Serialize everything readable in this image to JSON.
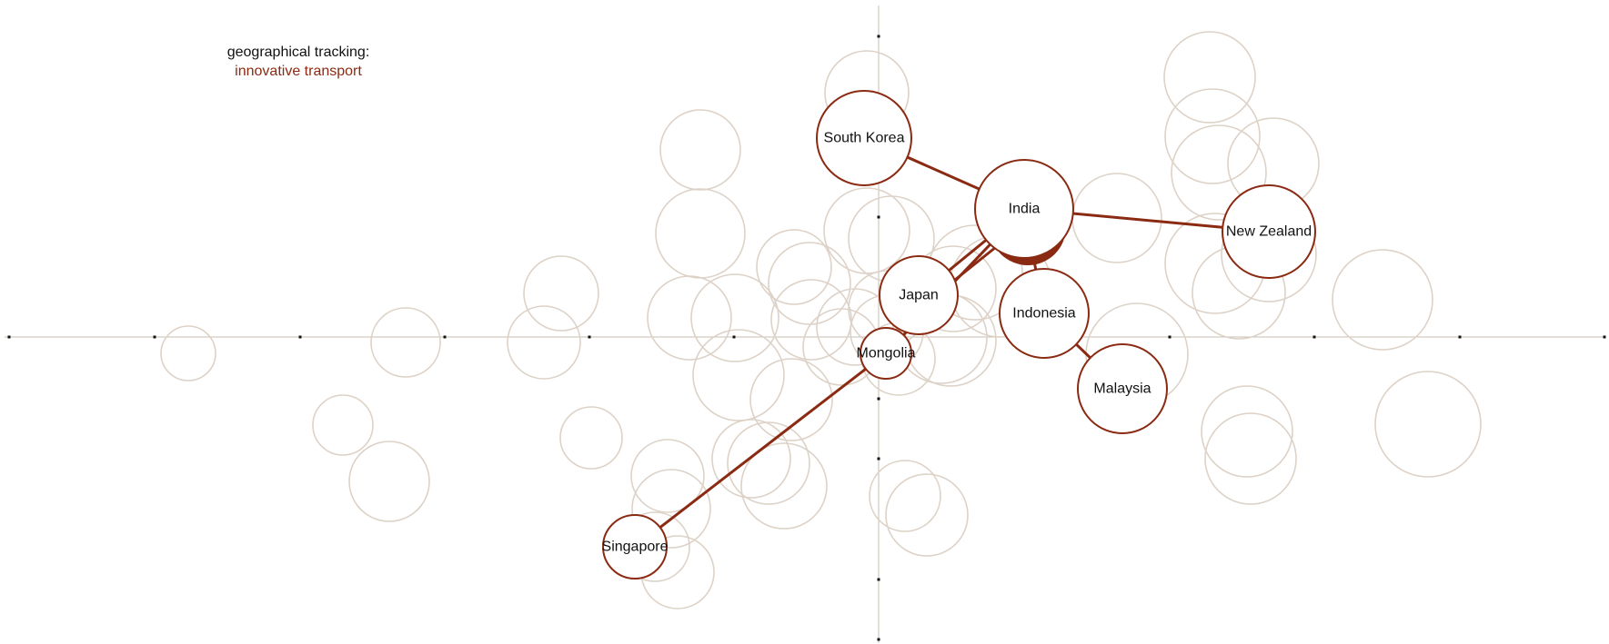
{
  "title": {
    "line1": "geographical tracking:",
    "line2": "innovative transport"
  },
  "colors": {
    "accent": "#8b2a12",
    "background_circle": "#ddd2c7",
    "axis": "#c9beb3",
    "text": "#111111"
  },
  "nodes": [
    {
      "id": "south-korea",
      "label": "South Korea"
    },
    {
      "id": "india",
      "label": "India"
    },
    {
      "id": "new-zealand",
      "label": "New Zealand"
    },
    {
      "id": "japan",
      "label": "Japan"
    },
    {
      "id": "indonesia",
      "label": "Indonesia"
    },
    {
      "id": "mongolia",
      "label": "Mongolia"
    },
    {
      "id": "malaysia",
      "label": "Malaysia"
    },
    {
      "id": "singapore",
      "label": "Singapore"
    }
  ],
  "links": [
    {
      "from": "india",
      "to": "south-korea"
    },
    {
      "from": "india",
      "to": "new-zealand"
    },
    {
      "from": "india",
      "to": "japan"
    },
    {
      "from": "india",
      "to": "indonesia"
    },
    {
      "from": "india",
      "to": "mongolia"
    },
    {
      "from": "indonesia",
      "to": "malaysia"
    },
    {
      "from": "mongolia",
      "to": "singapore"
    }
  ]
}
